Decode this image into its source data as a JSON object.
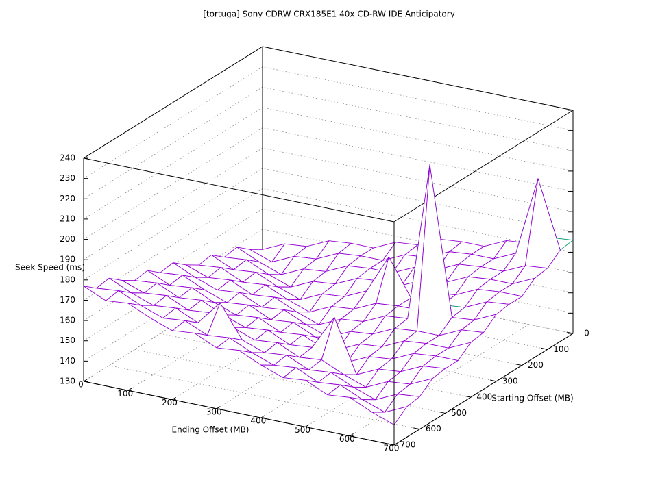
{
  "chart_data": {
    "type": "surface",
    "title": "[tortuga] Sony CDRW CRX185E1 40x CD-RW IDE Anticipatory",
    "xlabel": "Ending Offset (MB)",
    "ylabel": "Starting Offset (MB)",
    "zlabel": "Seek Speed (ms)",
    "x": [
      0,
      50,
      100,
      150,
      200,
      250,
      300,
      350,
      400,
      450,
      500,
      550,
      600,
      650,
      700
    ],
    "y": [
      0,
      50,
      100,
      150,
      200,
      250,
      300,
      350,
      400,
      450,
      500,
      550,
      600,
      650,
      700
    ],
    "z": [
      [
        140,
        145,
        146,
        151,
        152,
        152,
        157,
        158,
        163,
        164,
        164,
        169,
        170,
        175,
        176
      ],
      [
        144,
        140,
        145,
        146,
        151,
        152,
        152,
        157,
        158,
        163,
        164,
        164,
        169,
        208,
        175
      ],
      [
        149,
        144,
        140,
        145,
        146,
        151,
        152,
        152,
        157,
        158,
        163,
        164,
        164,
        169,
        170
      ],
      [
        148,
        149,
        144,
        140,
        145,
        146,
        151,
        152,
        152,
        157,
        158,
        163,
        164,
        164,
        169
      ],
      [
        153,
        148,
        149,
        144,
        140,
        145,
        146,
        151,
        170,
        152,
        157,
        158,
        163,
        164,
        164
      ],
      [
        152,
        153,
        148,
        149,
        144,
        140,
        145,
        146,
        151,
        152,
        152,
        157,
        158,
        163,
        164
      ],
      [
        156,
        152,
        153,
        148,
        149,
        144,
        140,
        145,
        146,
        151,
        152,
        230,
        157,
        158,
        163
      ],
      [
        161,
        156,
        152,
        153,
        148,
        149,
        144,
        140,
        145,
        146,
        151,
        152,
        152,
        157,
        158
      ],
      [
        160,
        161,
        156,
        152,
        153,
        148,
        149,
        144,
        140,
        145,
        146,
        151,
        152,
        152,
        157
      ],
      [
        165,
        160,
        161,
        156,
        152,
        153,
        148,
        149,
        144,
        140,
        145,
        146,
        151,
        152,
        152
      ],
      [
        164,
        165,
        160,
        161,
        156,
        152,
        153,
        148,
        149,
        166,
        140,
        145,
        146,
        151,
        152
      ],
      [
        168,
        164,
        165,
        160,
        161,
        156,
        152,
        153,
        148,
        149,
        144,
        140,
        145,
        146,
        151
      ],
      [
        173,
        168,
        164,
        165,
        160,
        172,
        156,
        152,
        153,
        148,
        149,
        144,
        140,
        145,
        146
      ],
      [
        172,
        173,
        168,
        164,
        165,
        160,
        161,
        156,
        152,
        153,
        148,
        149,
        144,
        140,
        145
      ],
      [
        177,
        172,
        173,
        168,
        164,
        165,
        160,
        161,
        156,
        152,
        153,
        148,
        149,
        144,
        140
      ]
    ],
    "xlim": [
      0,
      700
    ],
    "ylim": [
      0,
      700
    ],
    "zlim": [
      130,
      240
    ],
    "xticks": [
      0,
      100,
      200,
      300,
      400,
      500,
      600,
      700
    ],
    "yticks": [
      0,
      100,
      200,
      300,
      400,
      500,
      600,
      700
    ],
    "zticks": [
      130,
      140,
      150,
      160,
      170,
      180,
      190,
      200,
      210,
      220,
      230,
      240
    ],
    "grid": true,
    "color": "#9400d3",
    "bottom_color": "#009e73"
  }
}
